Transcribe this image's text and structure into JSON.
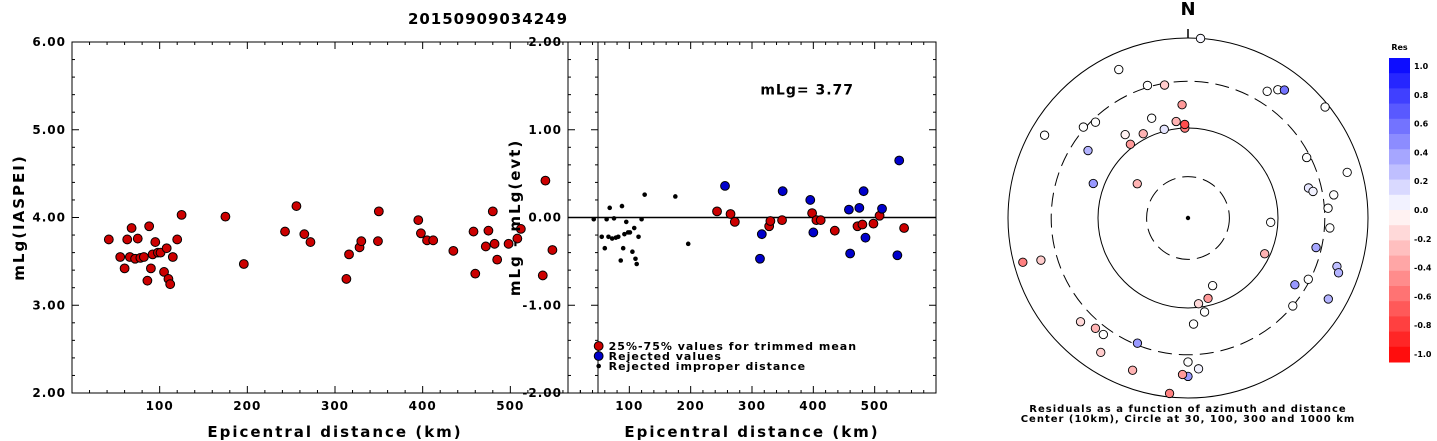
{
  "title": "20150909034249",
  "chart_data": [
    {
      "type": "scatter",
      "ylabel": "mLg(IASPEI)",
      "xlabel": "Epicentral distance (km)",
      "xlim": [
        0,
        600
      ],
      "ylim": [
        2.0,
        6.0
      ],
      "xticks": [
        "100",
        "200",
        "300",
        "400",
        "500"
      ],
      "yticks": [
        "2.00",
        "3.00",
        "4.00",
        "5.00",
        "6.00"
      ],
      "series": [
        {
          "color": "#cc0000",
          "points": [
            [
              42,
              3.75
            ],
            [
              55,
              3.55
            ],
            [
              60,
              3.42
            ],
            [
              63,
              3.75
            ],
            [
              66,
              3.55
            ],
            [
              68,
              3.88
            ],
            [
              72,
              3.53
            ],
            [
              75,
              3.76
            ],
            [
              78,
              3.54
            ],
            [
              82,
              3.55
            ],
            [
              86,
              3.28
            ],
            [
              88,
              3.9
            ],
            [
              90,
              3.42
            ],
            [
              92,
              3.58
            ],
            [
              95,
              3.72
            ],
            [
              98,
              3.6
            ],
            [
              101,
              3.6
            ],
            [
              105,
              3.38
            ],
            [
              108,
              3.65
            ],
            [
              110,
              3.3
            ],
            [
              112,
              3.24
            ],
            [
              115,
              3.55
            ],
            [
              120,
              3.75
            ],
            [
              125,
              4.03
            ],
            [
              175,
              4.01
            ],
            [
              196,
              3.47
            ],
            [
              243,
              3.84
            ],
            [
              256,
              4.13
            ],
            [
              265,
              3.81
            ],
            [
              272,
              3.72
            ],
            [
              313,
              3.3
            ],
            [
              316,
              3.58
            ],
            [
              328,
              3.66
            ],
            [
              330,
              3.73
            ],
            [
              349,
              3.73
            ],
            [
              350,
              4.07
            ],
            [
              395,
              3.97
            ],
            [
              398,
              3.82
            ],
            [
              405,
              3.74
            ],
            [
              412,
              3.74
            ],
            [
              435,
              3.62
            ],
            [
              458,
              3.84
            ],
            [
              460,
              3.36
            ],
            [
              472,
              3.67
            ],
            [
              475,
              3.85
            ],
            [
              480,
              4.07
            ],
            [
              482,
              3.7
            ],
            [
              485,
              3.52
            ],
            [
              498,
              3.7
            ],
            [
              508,
              3.76
            ],
            [
              512,
              3.87
            ],
            [
              537,
              3.34
            ],
            [
              540,
              4.42
            ],
            [
              548,
              3.63
            ]
          ]
        }
      ]
    },
    {
      "type": "scatter",
      "ylabel": "mLg - mLg(evt)",
      "xlabel": "Epicentral distance (km)",
      "xlim": [
        0,
        600
      ],
      "ylim": [
        -2.0,
        2.0
      ],
      "xticks": [
        "100",
        "200",
        "300",
        "400",
        "500"
      ],
      "yticks": [
        "-2.00",
        "-1.00",
        "0.00",
        "1.00",
        "2.00"
      ],
      "annotation": "mLg= 3.77",
      "legend": [
        "25%-75% values for trimmed mean",
        "Rejected values",
        "Rejected improper distance"
      ],
      "series": [
        {
          "kind": "trimmed",
          "color": "#cc0000",
          "points": [
            [
              243,
              0.07
            ],
            [
              265,
              0.04
            ],
            [
              272,
              -0.05
            ],
            [
              328,
              -0.1
            ],
            [
              330,
              -0.04
            ],
            [
              349,
              -0.03
            ],
            [
              398,
              0.05
            ],
            [
              405,
              -0.03
            ],
            [
              412,
              -0.03
            ],
            [
              435,
              -0.15
            ],
            [
              472,
              -0.1
            ],
            [
              480,
              -0.08
            ],
            [
              498,
              -0.07
            ],
            [
              508,
              0.02
            ],
            [
              548,
              -0.12
            ]
          ]
        },
        {
          "kind": "rejected",
          "color": "#0000cc",
          "points": [
            [
              256,
              0.36
            ],
            [
              313,
              -0.47
            ],
            [
              316,
              -0.19
            ],
            [
              350,
              0.3
            ],
            [
              395,
              0.2
            ],
            [
              400,
              -0.17
            ],
            [
              458,
              0.09
            ],
            [
              460,
              -0.41
            ],
            [
              475,
              0.11
            ],
            [
              482,
              0.3
            ],
            [
              485,
              -0.23
            ],
            [
              512,
              0.1
            ],
            [
              537,
              -0.43
            ],
            [
              540,
              0.65
            ]
          ]
        },
        {
          "kind": "improper",
          "color": "#000000",
          "points": [
            [
              42,
              -0.02
            ],
            [
              55,
              -0.22
            ],
            [
              60,
              -0.35
            ],
            [
              63,
              -0.02
            ],
            [
              66,
              -0.22
            ],
            [
              68,
              0.11
            ],
            [
              72,
              -0.24
            ],
            [
              75,
              -0.01
            ],
            [
              78,
              -0.23
            ],
            [
              82,
              -0.22
            ],
            [
              86,
              -0.49
            ],
            [
              88,
              0.13
            ],
            [
              90,
              -0.35
            ],
            [
              92,
              -0.19
            ],
            [
              95,
              -0.05
            ],
            [
              98,
              -0.17
            ],
            [
              101,
              -0.17
            ],
            [
              105,
              -0.39
            ],
            [
              108,
              -0.12
            ],
            [
              110,
              -0.47
            ],
            [
              112,
              -0.53
            ],
            [
              115,
              -0.22
            ],
            [
              120,
              -0.02
            ],
            [
              125,
              0.26
            ],
            [
              175,
              0.24
            ],
            [
              196,
              -0.3
            ]
          ]
        }
      ]
    },
    {
      "type": "polar-scatter",
      "north_label": "N",
      "caption": [
        "Residuals as a function of azimuth and distance",
        "Center (10km), Circle at 30, 100, 300 and 1000 km"
      ],
      "colorbar": {
        "title": "Res",
        "ticks": [
          "1.0",
          "0.8",
          "0.6",
          "0.4",
          "0.2",
          "0.0",
          "-0.2",
          "-0.4",
          "-0.6",
          "-0.8",
          "-1.0"
        ]
      },
      "points": [
        [
          4,
          1.0,
          0.03
        ],
        [
          32,
          0.83,
          0.0
        ],
        [
          35,
          0.87,
          0.0
        ],
        [
          37,
          0.89,
          0.55
        ],
        [
          51,
          0.98,
          0.0
        ],
        [
          63,
          0.74,
          0.0
        ],
        [
          74,
          0.92,
          0.0
        ],
        [
          76,
          0.69,
          0.1
        ],
        [
          78,
          0.71,
          0.05
        ],
        [
          81,
          0.82,
          0.0
        ],
        [
          86,
          0.78,
          0.0
        ],
        [
          94,
          0.79,
          0.0
        ],
        [
          93,
          0.46,
          0.0
        ],
        [
          103,
          0.73,
          0.35
        ],
        [
          108,
          0.87,
          0.25
        ],
        [
          110,
          0.89,
          0.3
        ],
        [
          117,
          0.75,
          0.0
        ],
        [
          120,
          0.9,
          0.3
        ],
        [
          115,
          0.47,
          -0.3
        ],
        [
          122,
          0.7,
          0.4
        ],
        [
          130,
          0.76,
          0.0
        ],
        [
          160,
          0.4,
          0.0
        ],
        [
          166,
          0.46,
          -0.4
        ],
        [
          170,
          0.53,
          0.0
        ],
        [
          173,
          0.48,
          -0.15
        ],
        [
          177,
          0.59,
          0.0
        ],
        [
          180,
          0.8,
          0.0
        ],
        [
          176,
          0.84,
          0.05
        ],
        [
          180,
          0.88,
          0.4
        ],
        [
          182,
          0.87,
          -0.4
        ],
        [
          186,
          0.98,
          -0.5
        ],
        [
          200,
          0.9,
          -0.3
        ],
        [
          202,
          0.75,
          0.4
        ],
        [
          216,
          0.8,
          0.0
        ],
        [
          213,
          0.89,
          -0.2
        ],
        [
          220,
          0.8,
          -0.3
        ],
        [
          226,
          0.83,
          -0.15
        ],
        [
          254,
          0.85,
          -0.2
        ],
        [
          255,
          0.95,
          -0.5
        ],
        [
          290,
          0.56,
          0.4
        ],
        [
          304,
          0.34,
          -0.3
        ],
        [
          300,
          0.92,
          0.0
        ],
        [
          304,
          0.67,
          0.3
        ],
        [
          311,
          0.77,
          0.0
        ],
        [
          316,
          0.74,
          0.0
        ],
        [
          322,
          0.52,
          -0.4
        ],
        [
          323,
          0.58,
          -0.05
        ],
        [
          332,
          0.53,
          -0.3
        ],
        [
          335,
          0.91,
          0.0
        ],
        [
          340,
          0.59,
          0.0
        ],
        [
          343,
          0.77,
          0.0
        ],
        [
          345,
          0.51,
          0.1
        ],
        [
          350,
          0.75,
          -0.2
        ],
        [
          353,
          0.54,
          -0.3
        ],
        [
          357,
          0.63,
          -0.4
        ],
        [
          358,
          0.5,
          -0.5
        ],
        [
          358,
          0.52,
          -0.7
        ]
      ]
    }
  ]
}
